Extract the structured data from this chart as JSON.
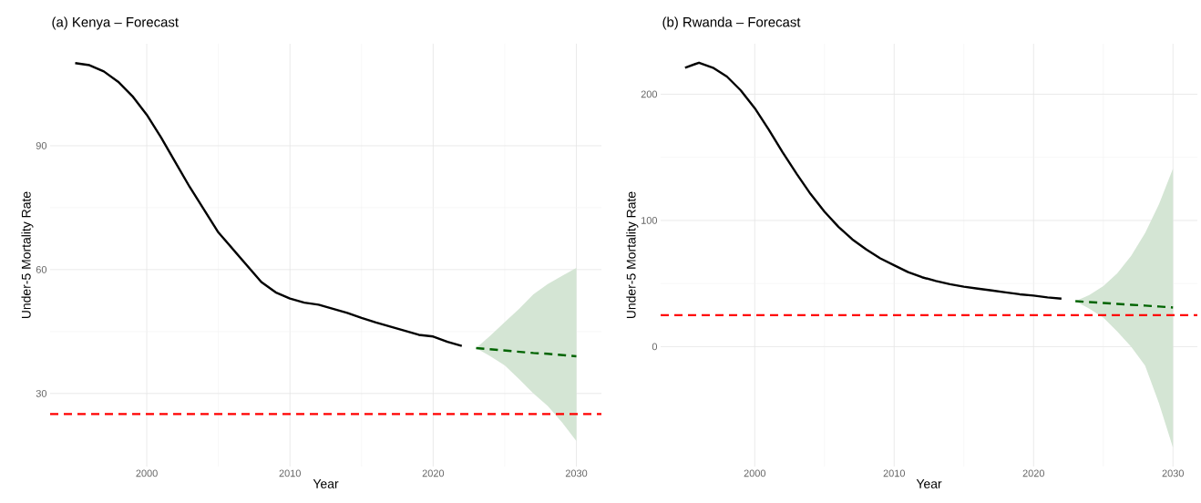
{
  "chart_data": [
    {
      "type": "line",
      "title": "(a)  Kenya  –  Forecast",
      "xlabel": "Year",
      "ylabel": "Under-5 Mortality Rate",
      "xlim": [
        1993.25,
        2031.75
      ],
      "ylim": [
        12.3,
        114.7
      ],
      "xticks": [
        2000,
        2010,
        2020,
        2030
      ],
      "yticks": [
        30,
        60,
        90
      ],
      "grid": true,
      "series": [
        {
          "color": "#000000",
          "line_style": "solid",
          "x": [
            1995,
            1996,
            1997,
            1998,
            1999,
            2000,
            2001,
            2002,
            2003,
            2004,
            2005,
            2006,
            2007,
            2008,
            2009,
            2010,
            2011,
            2012,
            2013,
            2014,
            2015,
            2016,
            2017,
            2018,
            2019,
            2020,
            2021,
            2022
          ],
          "values": [
            110,
            109.5,
            108,
            105.5,
            102,
            97.5,
            92,
            86,
            80,
            74.5,
            69,
            65,
            61,
            57,
            54.5,
            53,
            52,
            51.5,
            50.5,
            49.5,
            48.3,
            47.2,
            46.2,
            45.2,
            44.2,
            43.8,
            42.5,
            41.5
          ]
        },
        {
          "color": "#006400",
          "line_style": "dashed",
          "x": [
            2023,
            2024,
            2025,
            2026,
            2027,
            2028,
            2029,
            2030
          ],
          "values": [
            41,
            40.7,
            40.4,
            40.1,
            39.8,
            39.6,
            39.3,
            39
          ],
          "lower": [
            41,
            39,
            36.8,
            33.5,
            30,
            27,
            23,
            18.5
          ],
          "upper": [
            41,
            44,
            47.3,
            50.5,
            54,
            56.5,
            58.5,
            60.4
          ]
        }
      ],
      "ref_lines": [
        {
          "axis": "y",
          "value": 25,
          "color": "#ff0000",
          "line_style": "dashed"
        }
      ]
    },
    {
      "type": "line",
      "title": "(b)  Rwanda  –  Forecast",
      "xlabel": "Year",
      "ylabel": "Under-5 Mortality Rate",
      "xlim": [
        1993.25,
        2031.75
      ],
      "ylim": [
        -95,
        240
      ],
      "xticks": [
        2000,
        2010,
        2020,
        2030
      ],
      "yticks": [
        0,
        100,
        200
      ],
      "grid": true,
      "series": [
        {
          "color": "#000000",
          "line_style": "solid",
          "x": [
            1995,
            1996,
            1997,
            1998,
            1999,
            2000,
            2001,
            2002,
            2003,
            2004,
            2005,
            2006,
            2007,
            2008,
            2009,
            2010,
            2011,
            2012,
            2013,
            2014,
            2015,
            2016,
            2017,
            2018,
            2019,
            2020,
            2021,
            2022
          ],
          "values": [
            221,
            225,
            221,
            214,
            203,
            189,
            172,
            154,
            137,
            121,
            107,
            95,
            85,
            77,
            70,
            64.5,
            59,
            55,
            52,
            49.5,
            47.5,
            46,
            44.5,
            43,
            41.5,
            40.5,
            39,
            38
          ]
        },
        {
          "color": "#006400",
          "line_style": "dashed",
          "x": [
            2023,
            2024,
            2025,
            2026,
            2027,
            2028,
            2029,
            2030
          ],
          "values": [
            36,
            35.3,
            34.6,
            33.9,
            33.2,
            32.5,
            31.8,
            31
          ],
          "lower": [
            36,
            30,
            23,
            12,
            0,
            -15,
            -45,
            -80
          ],
          "upper": [
            36,
            41,
            48,
            58,
            72,
            90,
            113,
            141
          ]
        }
      ],
      "ref_lines": [
        {
          "axis": "y",
          "value": 25,
          "color": "#ff0000",
          "line_style": "dashed"
        }
      ]
    }
  ]
}
